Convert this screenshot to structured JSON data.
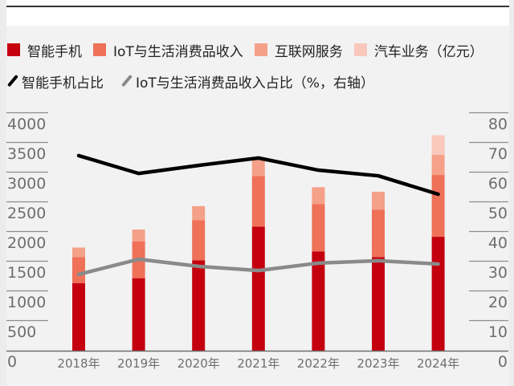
{
  "chart_data": {
    "type": "bar",
    "stacked": true,
    "categories": [
      "2018年",
      "2019年",
      "2020年",
      "2021年",
      "2022年",
      "2023年",
      "2024年"
    ],
    "series": [
      {
        "name": "智能手机",
        "kind": "bar",
        "axis": "left",
        "color": "#c4000f",
        "values": [
          1139,
          1221,
          1522,
          2089,
          1672,
          1575,
          1918
        ]
      },
      {
        "name": "IoT与生活消费品收入",
        "kind": "bar",
        "axis": "left",
        "color": "#ee7158",
        "values": [
          438,
          621,
          674,
          850,
          798,
          801,
          1041
        ]
      },
      {
        "name": "互联网服务",
        "kind": "bar",
        "axis": "left",
        "color": "#f5a088",
        "values": [
          160,
          198,
          238,
          282,
          283,
          301,
          341
        ]
      },
      {
        "name": "汽车业务（亿元）",
        "kind": "bar",
        "axis": "left",
        "color": "#fac8bc",
        "values": [
          0,
          0,
          0,
          0,
          0,
          0,
          328
        ]
      },
      {
        "name": "智能手机占比",
        "kind": "line",
        "axis": "right",
        "color": "#000000",
        "values": [
          65.7,
          59.7,
          62.4,
          64.9,
          60.8,
          58.9,
          52.7
        ]
      },
      {
        "name": "IoT与生活消费品收入占比（%，右轴）",
        "kind": "line",
        "axis": "right",
        "color": "#8a8a8a",
        "values": [
          25.7,
          30.8,
          28.4,
          27.0,
          29.5,
          30.3,
          29.2
        ]
      }
    ],
    "ylim": [
      0,
      4000
    ],
    "y_ticks": [
      "4000",
      "3500",
      "3000",
      "2500",
      "2000",
      "1500",
      "1000",
      "500",
      "0"
    ],
    "y2lim": [
      0,
      80
    ],
    "y2_ticks": [
      "80",
      "70",
      "60",
      "50",
      "40",
      "30",
      "20",
      "10",
      "0"
    ],
    "legend_position": "top-left",
    "grid": false,
    "title": "",
    "xlabel": "",
    "ylabel": ""
  },
  "legend": {
    "row1": [
      "智能手机",
      "IoT与生活消费品收入",
      "互联网服务",
      "汽车业务（亿元）"
    ],
    "row2": [
      "智能手机占比",
      "IoT与生活消费品收入占比（%，右轴）"
    ]
  }
}
